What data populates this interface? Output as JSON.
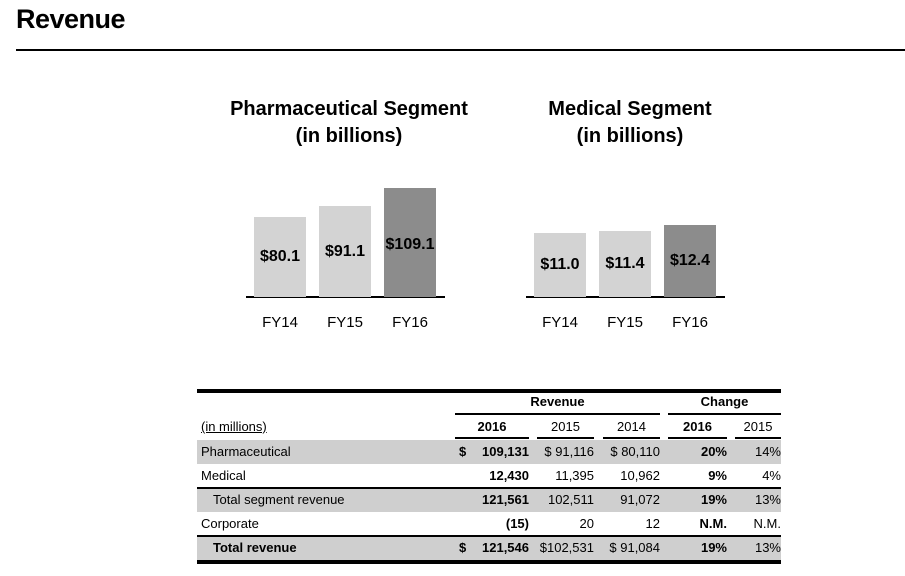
{
  "header": {
    "title": "Revenue"
  },
  "chart_data": [
    {
      "type": "bar",
      "title": "Pharmaceutical Segment",
      "subtitle": "(in billions)",
      "categories": [
        "FY14",
        "FY15",
        "FY16"
      ],
      "values": [
        80.1,
        91.1,
        109.1
      ],
      "labels": [
        "$80.1",
        "$91.1",
        "$109.1"
      ],
      "colors": [
        "#d3d3d3",
        "#d3d3d3",
        "#8c8c8c"
      ],
      "ylim": [
        0,
        110
      ]
    },
    {
      "type": "bar",
      "title": "Medical Segment",
      "subtitle": "(in billions)",
      "categories": [
        "FY14",
        "FY15",
        "FY16"
      ],
      "values": [
        11.0,
        11.4,
        12.4
      ],
      "labels": [
        "$11.0",
        "$11.4",
        "$12.4"
      ],
      "colors": [
        "#d3d3d3",
        "#d3d3d3",
        "#8c8c8c"
      ],
      "ylim": [
        0,
        12.4
      ]
    }
  ],
  "table": {
    "group_headers": {
      "revenue": "Revenue",
      "change": "Change"
    },
    "unit_label": "(in millions)",
    "columns": [
      "2016",
      "2015",
      "2014",
      "2016",
      "2015"
    ],
    "rows": [
      {
        "label": "Pharmaceutical",
        "cells": [
          "$ 109,131",
          "$ 91,116",
          "$ 80,110",
          "20%",
          "14%"
        ],
        "shaded": true,
        "indent": false,
        "bold": false
      },
      {
        "label": "Medical",
        "cells": [
          "12,430",
          "11,395",
          "10,962",
          "9%",
          "4%"
        ],
        "shaded": false,
        "indent": false,
        "bold": false
      },
      {
        "label": "Total segment revenue",
        "cells": [
          "121,561",
          "102,511",
          "91,072",
          "19%",
          "13%"
        ],
        "shaded": true,
        "indent": true,
        "bold": false
      },
      {
        "label": "Corporate",
        "cells": [
          "(15)",
          "20",
          "12",
          "N.M.",
          "N.M."
        ],
        "shaded": false,
        "indent": false,
        "bold": false
      },
      {
        "label": "Total revenue",
        "cells": [
          "$ 121,546",
          "$102,531",
          "$ 91,084",
          "19%",
          "13%"
        ],
        "shaded": true,
        "indent": true,
        "bold": true
      }
    ]
  }
}
